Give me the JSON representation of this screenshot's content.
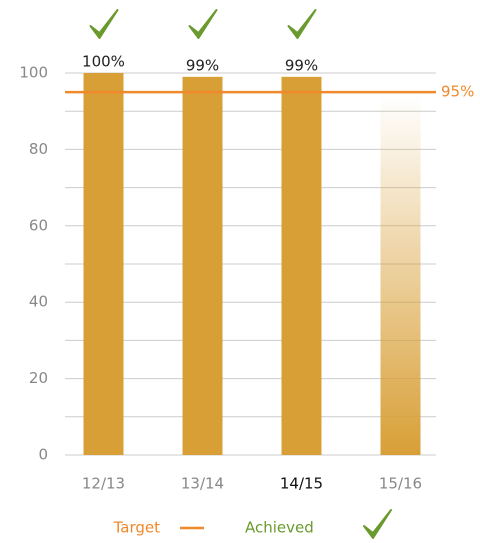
{
  "chart_data": {
    "type": "bar",
    "categories": [
      "12/13",
      "13/14",
      "14/15",
      "15/16"
    ],
    "values": [
      100,
      99,
      99,
      94
    ],
    "value_labels": [
      "100%",
      "99%",
      "99%",
      null
    ],
    "achieved": [
      true,
      true,
      true,
      false
    ],
    "faded": [
      false,
      false,
      false,
      true
    ],
    "highlighted_category": 2,
    "color": "#d89f36",
    "target": {
      "name": "Target",
      "value": 95,
      "label": "95%",
      "color": "#f0892a"
    },
    "achieved_legend": {
      "name": "Achieved",
      "color": "#6a9a2e"
    },
    "ylim": [
      0,
      100
    ],
    "yticks": [
      0,
      20,
      40,
      60,
      80,
      100
    ],
    "minor_yticks": [
      10,
      30,
      50,
      70,
      90
    ],
    "grid": true
  }
}
